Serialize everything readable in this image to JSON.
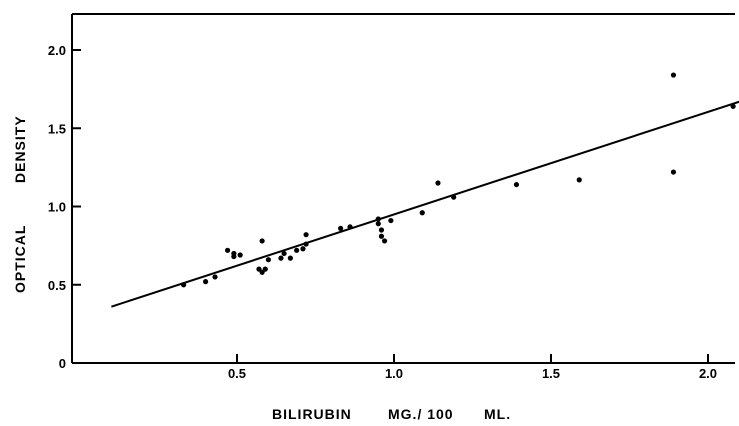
{
  "chart_data": {
    "type": "scatter",
    "title": "",
    "xlabel_parts": [
      "BILIRUBIN",
      "MG./ 100",
      "ML."
    ],
    "ylabel_parts": [
      "OPTICAL",
      "DENSITY"
    ],
    "xlim": [
      0,
      2.1
    ],
    "ylim": [
      0,
      2.2
    ],
    "x_ticks": [
      0.5,
      1.0,
      1.5,
      2.0
    ],
    "x_tick_labels": [
      "0.5",
      "1.0",
      "1.5",
      "2.0"
    ],
    "y_ticks": [
      0,
      0.5,
      1.0,
      1.5,
      2.0
    ],
    "y_tick_labels": [
      "0",
      "0.5",
      "1.0",
      "1.5",
      "2.0"
    ],
    "grid": false,
    "colors": {
      "points": "#000000",
      "line": "#000000",
      "axes": "#000000"
    },
    "points": [
      {
        "x": 0.33,
        "y": 0.5
      },
      {
        "x": 0.4,
        "y": 0.52
      },
      {
        "x": 0.43,
        "y": 0.55
      },
      {
        "x": 0.47,
        "y": 0.72
      },
      {
        "x": 0.49,
        "y": 0.7
      },
      {
        "x": 0.49,
        "y": 0.68
      },
      {
        "x": 0.51,
        "y": 0.69
      },
      {
        "x": 0.57,
        "y": 0.6
      },
      {
        "x": 0.58,
        "y": 0.58
      },
      {
        "x": 0.58,
        "y": 0.78
      },
      {
        "x": 0.59,
        "y": 0.6
      },
      {
        "x": 0.6,
        "y": 0.66
      },
      {
        "x": 0.64,
        "y": 0.67
      },
      {
        "x": 0.65,
        "y": 0.7
      },
      {
        "x": 0.67,
        "y": 0.67
      },
      {
        "x": 0.69,
        "y": 0.72
      },
      {
        "x": 0.71,
        "y": 0.73
      },
      {
        "x": 0.72,
        "y": 0.76
      },
      {
        "x": 0.72,
        "y": 0.82
      },
      {
        "x": 0.83,
        "y": 0.86
      },
      {
        "x": 0.86,
        "y": 0.87
      },
      {
        "x": 0.95,
        "y": 0.92
      },
      {
        "x": 0.95,
        "y": 0.89
      },
      {
        "x": 0.96,
        "y": 0.85
      },
      {
        "x": 0.96,
        "y": 0.81
      },
      {
        "x": 0.97,
        "y": 0.78
      },
      {
        "x": 0.99,
        "y": 0.91
      },
      {
        "x": 1.09,
        "y": 0.96
      },
      {
        "x": 1.14,
        "y": 1.15
      },
      {
        "x": 1.19,
        "y": 1.06
      },
      {
        "x": 1.39,
        "y": 1.14
      },
      {
        "x": 1.59,
        "y": 1.17
      },
      {
        "x": 1.89,
        "y": 1.84
      },
      {
        "x": 1.89,
        "y": 1.22
      },
      {
        "x": 2.08,
        "y": 1.64
      }
    ],
    "regression_line": {
      "x": [
        0.1,
        2.1
      ],
      "y": [
        0.36,
        1.67
      ]
    }
  }
}
